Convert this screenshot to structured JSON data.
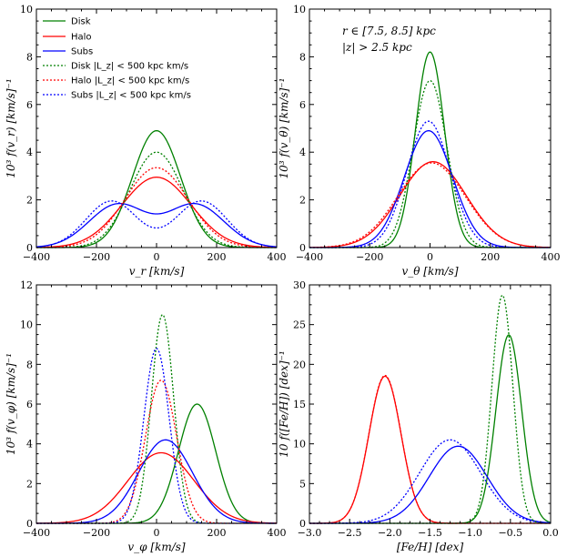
{
  "figure_title": "",
  "colors": {
    "disk": "#008000",
    "halo": "#ff0000",
    "subs": "#0000ff"
  },
  "legend": {
    "placement": "top-left of panel 1",
    "entries": [
      {
        "label": "Disk",
        "series": "disk",
        "style": "solid"
      },
      {
        "label": "Halo",
        "series": "halo",
        "style": "solid"
      },
      {
        "label": "Subs",
        "series": "subs",
        "style": "solid"
      },
      {
        "label": "Disk |L_z| < 500 kpc km/s",
        "series": "disk",
        "style": "dotted"
      },
      {
        "label": "Halo |L_z| < 500 kpc km/s",
        "series": "halo",
        "style": "dotted"
      },
      {
        "label": "Subs |L_z| < 500 kpc km/s",
        "series": "subs",
        "style": "dotted"
      }
    ]
  },
  "annotation": {
    "line1": "r ∈ [7.5, 8.5] kpc",
    "line2": "|z| > 2.5 kpc"
  },
  "chart_data": [
    {
      "type": "line",
      "id": "vr",
      "xlabel": "v_r [km/s]",
      "ylabel": "10³ f(v_r) [km/s]⁻¹",
      "xlim": [
        -400,
        400
      ],
      "ylim": [
        0,
        10
      ],
      "xticks": [
        -400,
        -200,
        0,
        200,
        400
      ],
      "yticks": [
        0,
        2,
        4,
        6,
        8,
        10
      ],
      "series": [
        {
          "name": "Disk",
          "color": "disk",
          "style": "solid",
          "components": [
            [
              4.9,
              0,
              80
            ]
          ]
        },
        {
          "name": "Halo",
          "color": "halo",
          "style": "solid",
          "components": [
            [
              2.95,
              0,
              115
            ]
          ]
        },
        {
          "name": "Subs",
          "color": "subs",
          "style": "solid",
          "components": [
            [
              1.8,
              -130,
              95
            ],
            [
              1.8,
              130,
              95
            ]
          ]
        },
        {
          "name": "Disk |Lz|<500",
          "color": "disk",
          "style": "dotted",
          "components": [
            [
              4.0,
              0,
              88
            ]
          ]
        },
        {
          "name": "Halo |Lz|<500",
          "color": "halo",
          "style": "dotted",
          "components": [
            [
              3.35,
              0,
              105
            ]
          ]
        },
        {
          "name": "Subs |Lz|<500",
          "color": "subs",
          "style": "dotted",
          "components": [
            [
              1.95,
              -150,
              85
            ],
            [
              1.95,
              150,
              85
            ]
          ]
        }
      ]
    },
    {
      "type": "line",
      "id": "vtheta",
      "xlabel": "v_θ [km/s]",
      "ylabel": "10³ f(v_θ) [km/s]⁻¹",
      "xlim": [
        -400,
        400
      ],
      "ylim": [
        0,
        10
      ],
      "xticks": [
        -400,
        -200,
        0,
        200,
        400
      ],
      "yticks": [
        0,
        2,
        4,
        6,
        8,
        10
      ],
      "series": [
        {
          "name": "Disk",
          "color": "disk",
          "style": "solid",
          "components": [
            [
              8.2,
              0,
              48
            ]
          ]
        },
        {
          "name": "Halo",
          "color": "halo",
          "style": "solid",
          "components": [
            [
              3.6,
              10,
              110
            ]
          ]
        },
        {
          "name": "Subs",
          "color": "subs",
          "style": "solid",
          "components": [
            [
              4.9,
              -5,
              80
            ]
          ]
        },
        {
          "name": "Disk |Lz|<500",
          "color": "disk",
          "style": "dotted",
          "components": [
            [
              7.0,
              0,
              56
            ]
          ]
        },
        {
          "name": "Halo |Lz|<500",
          "color": "halo",
          "style": "dotted",
          "components": [
            [
              3.55,
              5,
              112
            ]
          ]
        },
        {
          "name": "Subs |Lz|<500",
          "color": "subs",
          "style": "dotted",
          "components": [
            [
              5.3,
              -5,
              72
            ]
          ]
        }
      ]
    },
    {
      "type": "line",
      "id": "vphi",
      "xlabel": "v_φ [km/s]",
      "ylabel": "10³ f(v_φ) [km/s]⁻¹",
      "xlim": [
        -400,
        400
      ],
      "ylim": [
        0,
        12
      ],
      "xticks": [
        -400,
        -200,
        0,
        200,
        400
      ],
      "yticks": [
        0,
        2,
        4,
        6,
        8,
        10,
        12
      ],
      "series": [
        {
          "name": "Disk",
          "color": "disk",
          "style": "solid",
          "components": [
            [
              6.0,
              135,
              62
            ]
          ]
        },
        {
          "name": "Halo",
          "color": "halo",
          "style": "solid",
          "components": [
            [
              3.55,
              15,
              110
            ]
          ]
        },
        {
          "name": "Subs",
          "color": "subs",
          "style": "solid",
          "components": [
            [
              4.2,
              30,
              90
            ]
          ]
        },
        {
          "name": "Disk |Lz|<500",
          "color": "disk",
          "style": "dotted",
          "components": [
            [
              10.5,
              20,
              37
            ]
          ]
        },
        {
          "name": "Halo |Lz|<500",
          "color": "halo",
          "style": "dotted",
          "components": [
            [
              7.2,
              15,
              52
            ]
          ]
        },
        {
          "name": "Subs |Lz|<500",
          "color": "subs",
          "style": "dotted",
          "components": [
            [
              8.8,
              0,
              42
            ]
          ]
        }
      ]
    },
    {
      "type": "line",
      "id": "feh",
      "xlabel": "[Fe/H] [dex]",
      "ylabel": "10 f([Fe/H]) [dex]⁻¹",
      "xlim": [
        -3.0,
        0.0
      ],
      "ylim": [
        0,
        30
      ],
      "xticks": [
        -3.0,
        -2.5,
        -2.0,
        -1.5,
        -1.0,
        -0.5,
        0.0
      ],
      "xtick_labels": [
        "−3.0",
        "−2.5",
        "−2.0",
        "−1.5",
        "−1.0",
        "−0.5",
        "0.0"
      ],
      "yticks": [
        0,
        5,
        10,
        15,
        20,
        25,
        30
      ],
      "series": [
        {
          "name": "Disk",
          "color": "disk",
          "style": "solid",
          "components": [
            [
              23.7,
              -0.52,
              0.16
            ]
          ]
        },
        {
          "name": "Halo",
          "color": "halo",
          "style": "solid",
          "components": [
            [
              18.5,
              -2.06,
              0.2
            ]
          ]
        },
        {
          "name": "Subs",
          "color": "subs",
          "style": "solid",
          "components": [
            [
              9.7,
              -1.15,
              0.36
            ]
          ]
        },
        {
          "name": "Disk |Lz|<500",
          "color": "disk",
          "style": "dotted",
          "components": [
            [
              28.7,
              -0.6,
              0.13
            ]
          ]
        },
        {
          "name": "Halo |Lz|<500",
          "color": "halo",
          "style": "dotted",
          "components": [
            [
              18.6,
              -2.06,
              0.2
            ]
          ]
        },
        {
          "name": "Subs |Lz|<500",
          "color": "subs",
          "style": "dotted",
          "components": [
            [
              10.5,
              -1.25,
              0.38
            ]
          ]
        }
      ]
    }
  ]
}
